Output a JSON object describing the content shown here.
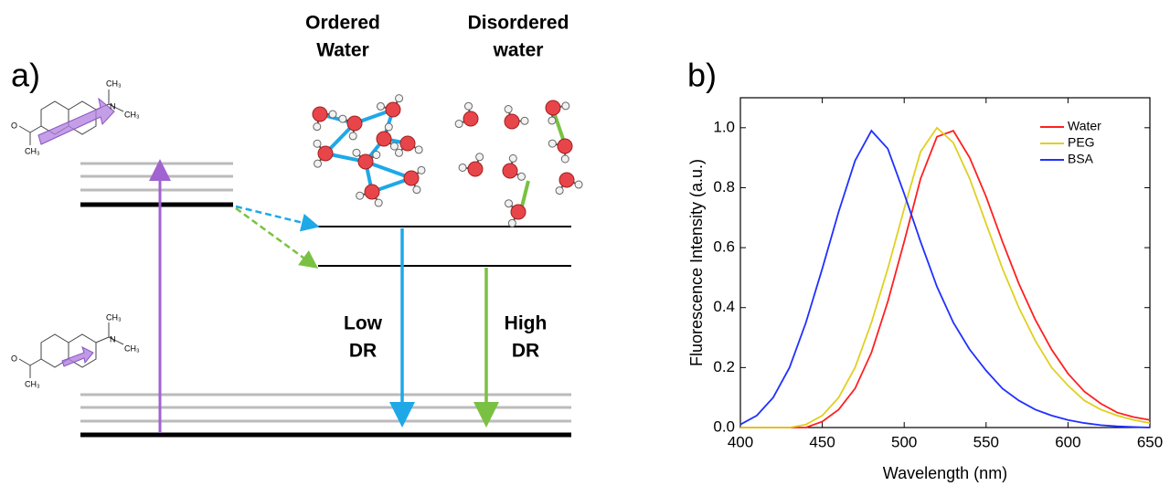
{
  "diagram": {
    "panel_label": "a)",
    "ordered_label": [
      "Ordered",
      "Water"
    ],
    "disordered_label": [
      "Disordered",
      "water"
    ],
    "low_label": [
      "Low",
      "DR"
    ],
    "high_label": [
      "High",
      "DR"
    ],
    "excited_molecule": {
      "n": "N",
      "methyl_top": "CH₃",
      "methyl_right": "CH₃",
      "oxygen": "O",
      "methyl_left": "CH₃"
    },
    "ground_molecule": {
      "n": "N",
      "methyl_top": "CH₃",
      "methyl_right": "CH₃",
      "oxygen": "O",
      "methyl_left": "CH₃"
    }
  },
  "chart_data": {
    "type": "line",
    "panel_label": "b)",
    "x_label": "Wavelength (nm)",
    "y_label": "Fluorescence Intensity (a.u.)",
    "x": [
      400,
      410,
      420,
      430,
      440,
      450,
      460,
      470,
      480,
      490,
      500,
      510,
      520,
      530,
      540,
      550,
      560,
      570,
      580,
      590,
      600,
      610,
      620,
      630,
      640,
      650
    ],
    "series": [
      {
        "name": "Water",
        "color": "#ff2020",
        "values": [
          0,
          0,
          0,
          0,
          0,
          0.02,
          0.06,
          0.13,
          0.25,
          0.42,
          0.62,
          0.83,
          0.97,
          0.99,
          0.9,
          0.77,
          0.62,
          0.48,
          0.36,
          0.26,
          0.18,
          0.12,
          0.08,
          0.05,
          0.035,
          0.025
        ]
      },
      {
        "name": "PEG",
        "color": "#e0d020",
        "values": [
          0,
          0,
          0,
          0,
          0.01,
          0.04,
          0.1,
          0.2,
          0.35,
          0.53,
          0.73,
          0.92,
          1.0,
          0.95,
          0.83,
          0.68,
          0.53,
          0.4,
          0.29,
          0.2,
          0.14,
          0.09,
          0.06,
          0.04,
          0.025,
          0.015
        ]
      },
      {
        "name": "BSA",
        "color": "#2030ff",
        "values": [
          0.01,
          0.04,
          0.1,
          0.2,
          0.35,
          0.53,
          0.72,
          0.89,
          0.99,
          0.93,
          0.78,
          0.62,
          0.47,
          0.35,
          0.26,
          0.19,
          0.13,
          0.09,
          0.06,
          0.04,
          0.025,
          0.015,
          0.008,
          0.004,
          0.002,
          0
        ]
      }
    ],
    "xlim": [
      400,
      650
    ],
    "xticks": [
      400,
      450,
      500,
      550,
      600,
      650
    ],
    "ylim": [
      0,
      1.1
    ],
    "yticks": [
      {
        "value": 0,
        "label": "0.0"
      },
      0.2,
      0.4,
      0.6,
      0.8,
      {
        "value": 1,
        "label": "1.0"
      }
    ],
    "legend": "upper right",
    "grid": false
  }
}
